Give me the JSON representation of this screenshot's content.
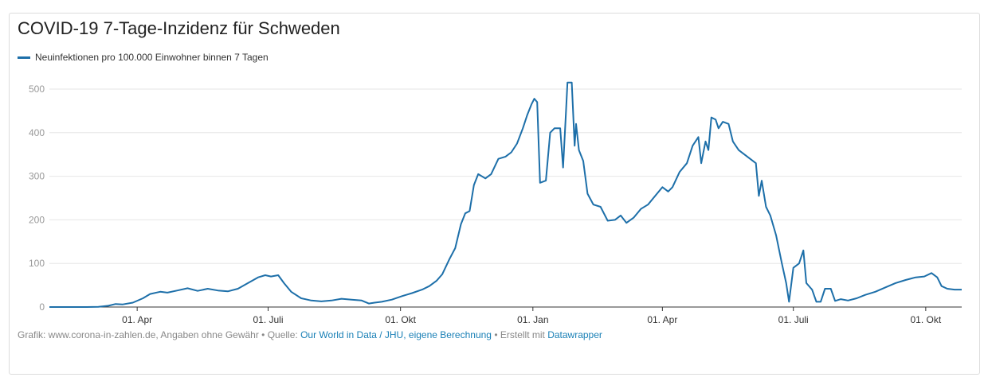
{
  "colors": {
    "series": "#1d6fa9",
    "grid": "#e6e6e6",
    "axis": "#333333",
    "tick_label": "#999999",
    "link": "#1a80b6"
  },
  "footer": {
    "prefix": "Grafik: www.corona-in-zahlen.de, Angaben ohne Gewähr • Quelle: ",
    "source_link": "Our World in Data / JHU, eigene Berechnung",
    "middle": " • Erstellt mit ",
    "tool_link": "Datawrapper"
  },
  "chart_data": {
    "type": "line",
    "title": "COVID-19 7-Tage-Inzidenz für Schweden",
    "xlabel": "",
    "ylabel": "",
    "ylim": [
      0,
      500
    ],
    "yticks": [
      0,
      100,
      200,
      300,
      400,
      500
    ],
    "xticks": [
      {
        "date": "2020-04-01",
        "label": "01. Apr"
      },
      {
        "date": "2020-07-01",
        "label": "01. Juli"
      },
      {
        "date": "2020-10-01",
        "label": "01. Okt"
      },
      {
        "date": "2021-01-01",
        "label": "01. Jan"
      },
      {
        "date": "2021-04-01",
        "label": "01. Apr"
      },
      {
        "date": "2021-07-01",
        "label": "01. Juli"
      },
      {
        "date": "2021-10-01",
        "label": "01. Okt"
      }
    ],
    "xrange": [
      "2020-01-31",
      "2021-10-26"
    ],
    "grid": true,
    "legend_position": "top-left",
    "series": [
      {
        "name": "Neuinfektionen pro 100.000 Einwohner binnen 7 Tagen",
        "points": [
          [
            "2020-01-31",
            0
          ],
          [
            "2020-02-26",
            0
          ],
          [
            "2020-03-05",
            0.5
          ],
          [
            "2020-03-12",
            3
          ],
          [
            "2020-03-17",
            7
          ],
          [
            "2020-03-22",
            6
          ],
          [
            "2020-03-29",
            10
          ],
          [
            "2020-04-05",
            20
          ],
          [
            "2020-04-10",
            30
          ],
          [
            "2020-04-17",
            35
          ],
          [
            "2020-04-22",
            33
          ],
          [
            "2020-04-29",
            38
          ],
          [
            "2020-05-06",
            43
          ],
          [
            "2020-05-13",
            37
          ],
          [
            "2020-05-20",
            42
          ],
          [
            "2020-05-27",
            38
          ],
          [
            "2020-06-03",
            36
          ],
          [
            "2020-06-10",
            42
          ],
          [
            "2020-06-17",
            55
          ],
          [
            "2020-06-24",
            68
          ],
          [
            "2020-06-29",
            73
          ],
          [
            "2020-07-03",
            70
          ],
          [
            "2020-07-08",
            73
          ],
          [
            "2020-07-12",
            55
          ],
          [
            "2020-07-17",
            35
          ],
          [
            "2020-07-24",
            20
          ],
          [
            "2020-07-31",
            15
          ],
          [
            "2020-08-07",
            13
          ],
          [
            "2020-08-14",
            15
          ],
          [
            "2020-08-21",
            19
          ],
          [
            "2020-08-28",
            17
          ],
          [
            "2020-09-04",
            15
          ],
          [
            "2020-09-09",
            8
          ],
          [
            "2020-09-13",
            10
          ],
          [
            "2020-09-18",
            12
          ],
          [
            "2020-09-25",
            17
          ],
          [
            "2020-10-02",
            25
          ],
          [
            "2020-10-09",
            32
          ],
          [
            "2020-10-16",
            40
          ],
          [
            "2020-10-21",
            48
          ],
          [
            "2020-10-26",
            60
          ],
          [
            "2020-10-30",
            75
          ],
          [
            "2020-11-04",
            110
          ],
          [
            "2020-11-08",
            135
          ],
          [
            "2020-11-12",
            190
          ],
          [
            "2020-11-15",
            215
          ],
          [
            "2020-11-18",
            220
          ],
          [
            "2020-11-21",
            280
          ],
          [
            "2020-11-24",
            305
          ],
          [
            "2020-11-29",
            295
          ],
          [
            "2020-12-03",
            305
          ],
          [
            "2020-12-08",
            340
          ],
          [
            "2020-12-13",
            345
          ],
          [
            "2020-12-17",
            355
          ],
          [
            "2020-12-21",
            375
          ],
          [
            "2020-12-25",
            410
          ],
          [
            "2020-12-28",
            440
          ],
          [
            "2020-12-31",
            465
          ],
          [
            "2021-01-02",
            478
          ],
          [
            "2021-01-04",
            470
          ],
          [
            "2021-01-06",
            285
          ],
          [
            "2021-01-10",
            290
          ],
          [
            "2021-01-13",
            400
          ],
          [
            "2021-01-16",
            410
          ],
          [
            "2021-01-20",
            410
          ],
          [
            "2021-01-22",
            320
          ],
          [
            "2021-01-24",
            450
          ],
          [
            "2021-01-25",
            515
          ],
          [
            "2021-01-28",
            515
          ],
          [
            "2021-01-30",
            370
          ],
          [
            "2021-01-31",
            420
          ],
          [
            "2021-02-02",
            360
          ],
          [
            "2021-02-05",
            335
          ],
          [
            "2021-02-08",
            260
          ],
          [
            "2021-02-12",
            235
          ],
          [
            "2021-02-17",
            230
          ],
          [
            "2021-02-22",
            198
          ],
          [
            "2021-02-27",
            200
          ],
          [
            "2021-03-03",
            210
          ],
          [
            "2021-03-07",
            193
          ],
          [
            "2021-03-12",
            205
          ],
          [
            "2021-03-17",
            225
          ],
          [
            "2021-03-22",
            235
          ],
          [
            "2021-03-27",
            255
          ],
          [
            "2021-04-01",
            275
          ],
          [
            "2021-04-05",
            265
          ],
          [
            "2021-04-08",
            275
          ],
          [
            "2021-04-13",
            310
          ],
          [
            "2021-04-18",
            330
          ],
          [
            "2021-04-22",
            370
          ],
          [
            "2021-04-26",
            390
          ],
          [
            "2021-04-28",
            330
          ],
          [
            "2021-05-01",
            380
          ],
          [
            "2021-05-03",
            360
          ],
          [
            "2021-05-05",
            435
          ],
          [
            "2021-05-08",
            430
          ],
          [
            "2021-05-10",
            410
          ],
          [
            "2021-05-13",
            425
          ],
          [
            "2021-05-17",
            420
          ],
          [
            "2021-05-20",
            380
          ],
          [
            "2021-05-24",
            360
          ],
          [
            "2021-05-28",
            350
          ],
          [
            "2021-06-01",
            340
          ],
          [
            "2021-06-05",
            330
          ],
          [
            "2021-06-07",
            255
          ],
          [
            "2021-06-09",
            290
          ],
          [
            "2021-06-12",
            230
          ],
          [
            "2021-06-15",
            210
          ],
          [
            "2021-06-19",
            165
          ],
          [
            "2021-06-23",
            100
          ],
          [
            "2021-06-26",
            55
          ],
          [
            "2021-06-28",
            12
          ],
          [
            "2021-07-01",
            90
          ],
          [
            "2021-07-05",
            100
          ],
          [
            "2021-07-08",
            130
          ],
          [
            "2021-07-10",
            55
          ],
          [
            "2021-07-14",
            40
          ],
          [
            "2021-07-17",
            12
          ],
          [
            "2021-07-20",
            12
          ],
          [
            "2021-07-23",
            42
          ],
          [
            "2021-07-27",
            42
          ],
          [
            "2021-07-30",
            14
          ],
          [
            "2021-08-03",
            18
          ],
          [
            "2021-08-08",
            15
          ],
          [
            "2021-08-14",
            20
          ],
          [
            "2021-08-20",
            28
          ],
          [
            "2021-08-27",
            35
          ],
          [
            "2021-09-03",
            45
          ],
          [
            "2021-09-10",
            55
          ],
          [
            "2021-09-17",
            62
          ],
          [
            "2021-09-24",
            68
          ],
          [
            "2021-09-30",
            70
          ],
          [
            "2021-10-05",
            78
          ],
          [
            "2021-10-09",
            68
          ],
          [
            "2021-10-12",
            48
          ],
          [
            "2021-10-16",
            42
          ],
          [
            "2021-10-21",
            40
          ],
          [
            "2021-10-26",
            40
          ]
        ]
      }
    ]
  }
}
